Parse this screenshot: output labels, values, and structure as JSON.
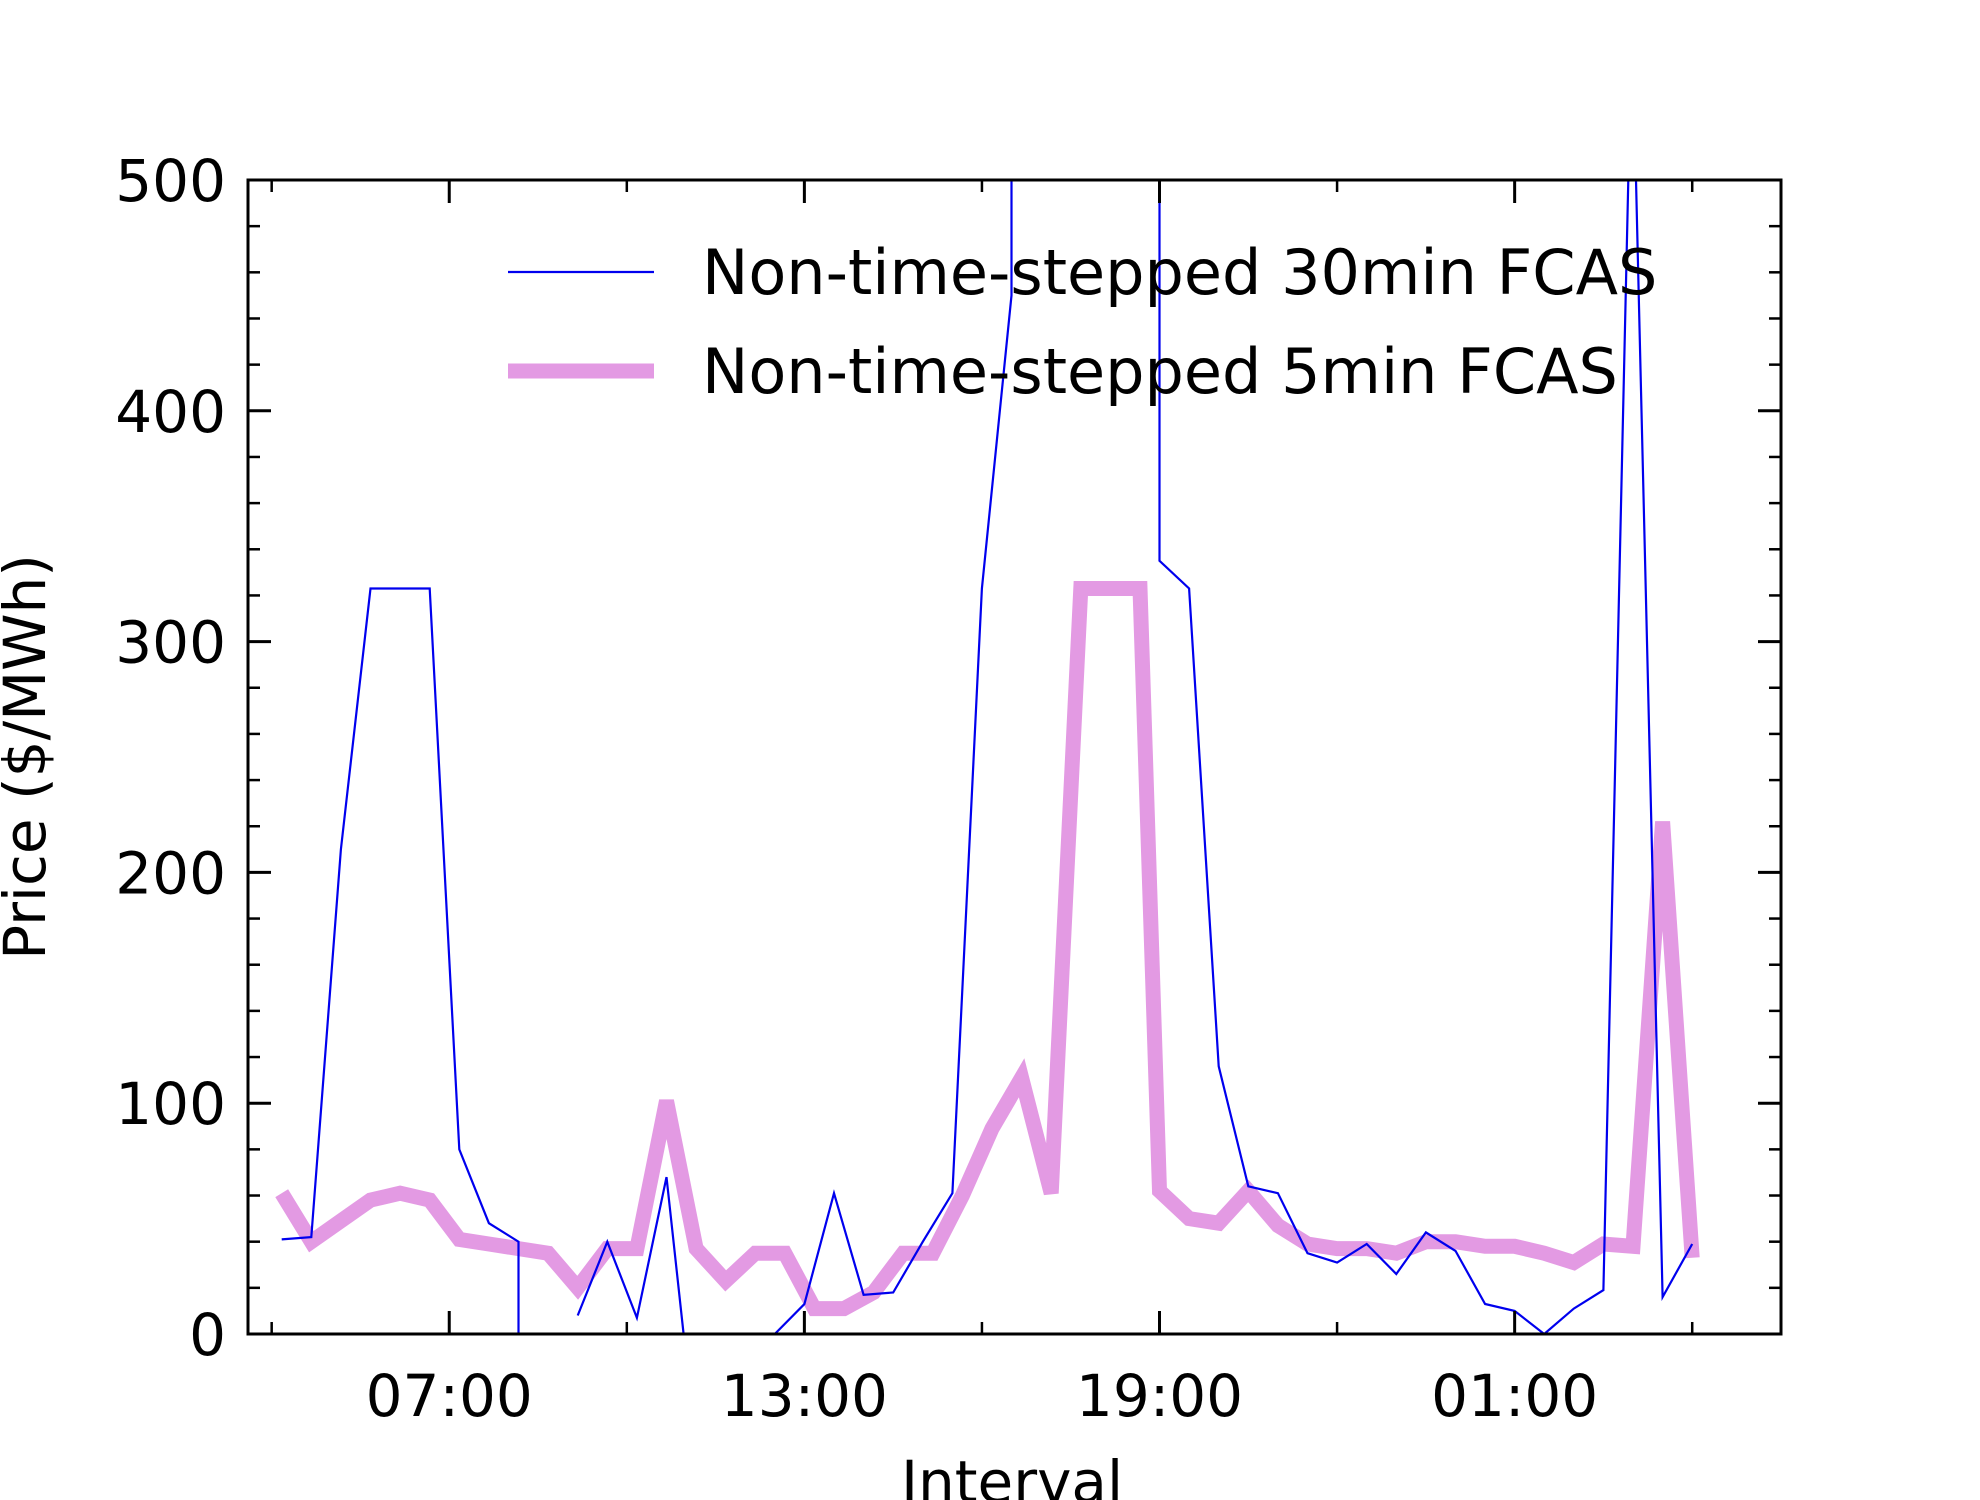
{
  "chart_data": {
    "type": "line",
    "xlabel": "Interval",
    "ylabel": "Price ($/MWh)",
    "ylim": [
      0,
      500
    ],
    "y_ticks": [
      0,
      100,
      200,
      300,
      400,
      500
    ],
    "x_tick_labels": [
      "07:00",
      "13:00",
      "19:00",
      "01:00"
    ],
    "x_tick_hours": [
      7,
      13,
      19,
      25
    ],
    "xlim_hours": [
      3.6,
      29.5
    ],
    "legend_position": "top-right",
    "series": [
      {
        "name": "Non-time-stepped 30min FCAS",
        "color": "#0000ee",
        "style": "thin",
        "segments": [
          [
            [
              4.17,
              41
            ],
            [
              4.67,
              42
            ],
            [
              5.17,
              210
            ],
            [
              5.67,
              323
            ],
            [
              6.17,
              323
            ],
            [
              6.67,
              323
            ],
            [
              7.17,
              80
            ],
            [
              7.67,
              48
            ],
            [
              8.17,
              40
            ],
            [
              8.17,
              0
            ]
          ],
          [
            [
              9.17,
              8
            ],
            [
              9.67,
              40
            ],
            [
              10.17,
              7
            ],
            [
              10.67,
              68
            ],
            [
              10.96,
              0
            ]
          ],
          [
            [
              12.5,
              0
            ],
            [
              13.0,
              13
            ],
            [
              13.5,
              61
            ],
            [
              14.0,
              17
            ],
            [
              14.5,
              18
            ],
            [
              15.0,
              40
            ],
            [
              15.5,
              61
            ],
            [
              16.0,
              323
            ],
            [
              16.5,
              450
            ],
            [
              16.5,
              500
            ]
          ],
          [
            [
              19.0,
              500
            ],
            [
              19.0,
              335
            ],
            [
              19.5,
              323
            ],
            [
              20.0,
              116
            ],
            [
              20.5,
              64
            ],
            [
              21.0,
              61
            ],
            [
              21.5,
              35
            ],
            [
              22.0,
              31
            ],
            [
              22.5,
              39
            ],
            [
              23.0,
              26
            ],
            [
              23.5,
              44
            ],
            [
              24.0,
              36
            ],
            [
              24.5,
              13
            ],
            [
              25.0,
              10
            ],
            [
              25.5,
              0
            ],
            [
              26.0,
              11
            ],
            [
              26.5,
              19
            ],
            [
              26.92,
              500
            ]
          ],
          [
            [
              27.05,
              500
            ],
            [
              27.5,
              16
            ],
            [
              28.0,
              39
            ]
          ]
        ]
      },
      {
        "name": "Non-time-stepped 5min FCAS",
        "color": "#e39ae3",
        "style": "thick",
        "segments": [
          [
            [
              4.17,
              61
            ],
            [
              4.67,
              40
            ],
            [
              5.17,
              49
            ],
            [
              5.67,
              58
            ],
            [
              6.17,
              61
            ],
            [
              6.67,
              58
            ],
            [
              7.17,
              41
            ],
            [
              7.67,
              39
            ],
            [
              8.17,
              37
            ],
            [
              8.67,
              35
            ],
            [
              9.17,
              20
            ],
            [
              9.67,
              37
            ],
            [
              10.17,
              37
            ],
            [
              10.67,
              101
            ],
            [
              11.17,
              37
            ],
            [
              11.67,
              23
            ],
            [
              12.17,
              35
            ],
            [
              12.67,
              35
            ],
            [
              13.17,
              11
            ],
            [
              13.67,
              11
            ],
            [
              14.17,
              18
            ],
            [
              14.67,
              35
            ],
            [
              15.17,
              35
            ],
            [
              15.67,
              60
            ],
            [
              16.17,
              89
            ],
            [
              16.67,
              111
            ],
            [
              17.17,
              61
            ],
            [
              17.67,
              323
            ],
            [
              18.17,
              323
            ],
            [
              18.67,
              323
            ],
            [
              19.0,
              62
            ],
            [
              19.5,
              50
            ],
            [
              20.0,
              48
            ],
            [
              20.5,
              62
            ],
            [
              21.0,
              47
            ],
            [
              21.5,
              39
            ],
            [
              22.0,
              37
            ],
            [
              22.5,
              37
            ],
            [
              23.0,
              35
            ],
            [
              23.5,
              40
            ],
            [
              24.0,
              40
            ],
            [
              24.5,
              38
            ],
            [
              25.0,
              38
            ],
            [
              25.5,
              35
            ],
            [
              26.0,
              31
            ],
            [
              26.5,
              39
            ],
            [
              27.0,
              38
            ],
            [
              27.5,
              222
            ],
            [
              28.0,
              33
            ]
          ]
        ]
      }
    ]
  }
}
